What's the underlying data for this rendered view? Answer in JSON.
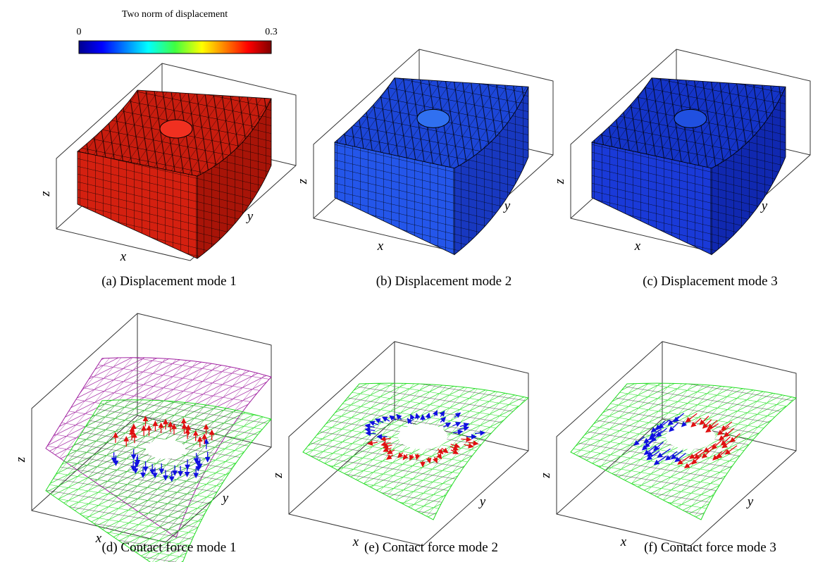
{
  "colorbar": {
    "title": "Two norm of displacement",
    "min_label": "0",
    "max_label": "0.3"
  },
  "panels": [
    {
      "caption": "(a) Displacement mode 1",
      "x_label": "x",
      "y_label": "y",
      "z_label": "z"
    },
    {
      "caption": "(b) Displacement mode 2",
      "x_label": "x",
      "y_label": "y",
      "z_label": "z"
    },
    {
      "caption": "(c) Displacement mode 3",
      "x_label": "x",
      "y_label": "y",
      "z_label": "z"
    },
    {
      "caption": "(d) Contact force mode 1",
      "x_label": "x",
      "y_label": "y",
      "z_label": "z"
    },
    {
      "caption": "(e) Contact force mode 2",
      "x_label": "x",
      "y_label": "y",
      "z_label": "z"
    },
    {
      "caption": "(f) Contact force mode 3",
      "x_label": "x",
      "y_label": "y",
      "z_label": "z"
    }
  ]
}
